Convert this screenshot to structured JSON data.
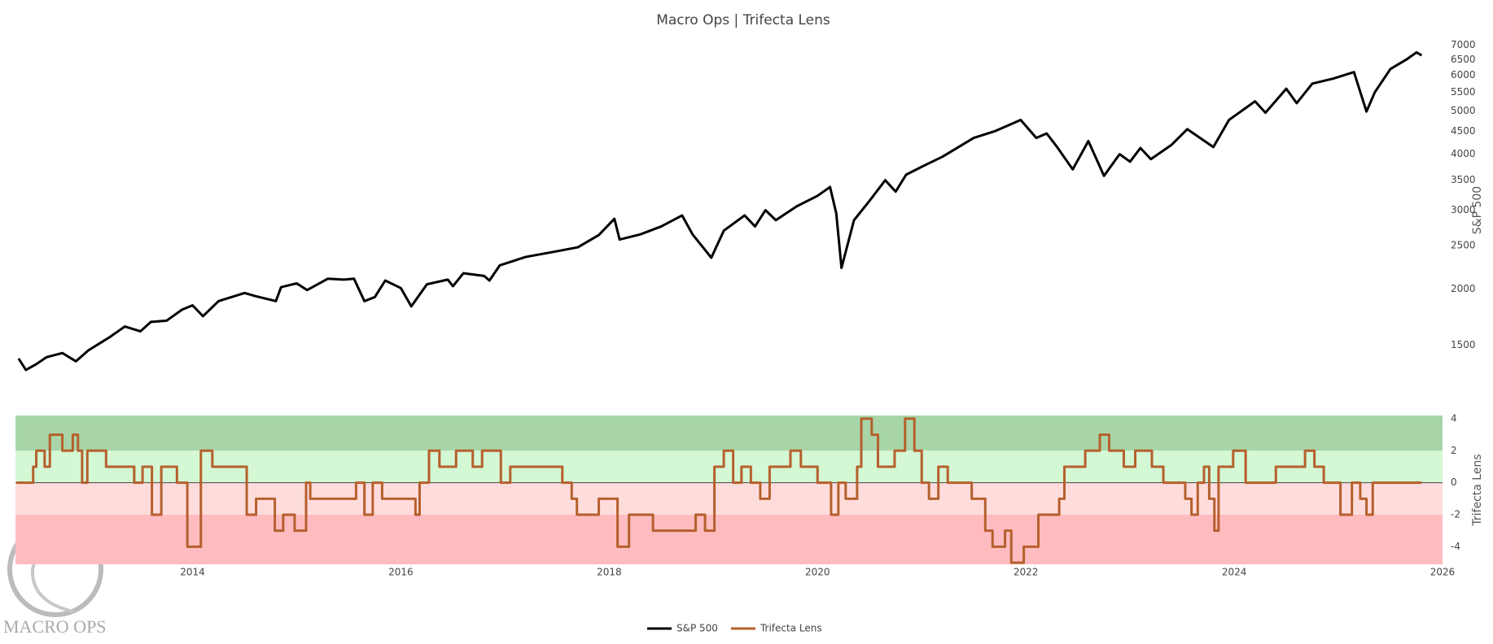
{
  "chart_data": [
    {
      "type": "line",
      "title": "Macro Ops | Trifecta Lens",
      "ylabel": "S&P 500",
      "log_scale": true,
      "x": [
        2012.33,
        2012.4,
        2012.5,
        2012.6,
        2012.75,
        2012.88,
        2013.0,
        2013.2,
        2013.35,
        2013.5,
        2013.6,
        2013.75,
        2013.9,
        2014.0,
        2014.1,
        2014.25,
        2014.5,
        2014.6,
        2014.8,
        2014.85,
        2015.0,
        2015.1,
        2015.3,
        2015.45,
        2015.55,
        2015.65,
        2015.75,
        2015.85,
        2016.0,
        2016.1,
        2016.25,
        2016.45,
        2016.5,
        2016.6,
        2016.8,
        2016.85,
        2016.95,
        2017.2,
        2017.5,
        2017.7,
        2017.9,
        2018.05,
        2018.1,
        2018.3,
        2018.5,
        2018.7,
        2018.8,
        2018.98,
        2019.1,
        2019.3,
        2019.4,
        2019.5,
        2019.6,
        2019.8,
        2020.0,
        2020.12,
        2020.18,
        2020.23,
        2020.35,
        2020.5,
        2020.65,
        2020.75,
        2020.85,
        2021.0,
        2021.2,
        2021.5,
        2021.7,
        2021.95,
        2022.1,
        2022.2,
        2022.3,
        2022.45,
        2022.6,
        2022.75,
        2022.9,
        2023.0,
        2023.1,
        2023.2,
        2023.4,
        2023.55,
        2023.8,
        2023.95,
        2024.2,
        2024.3,
        2024.5,
        2024.6,
        2024.75,
        2024.95,
        2025.15,
        2025.27,
        2025.35,
        2025.5,
        2025.65,
        2025.75,
        2025.8
      ],
      "series": [
        {
          "name": "S&P 500",
          "color": "#000000",
          "values": [
            1400,
            1320,
            1360,
            1410,
            1440,
            1380,
            1460,
            1560,
            1650,
            1610,
            1690,
            1700,
            1800,
            1840,
            1740,
            1880,
            1960,
            1930,
            1880,
            2020,
            2060,
            1990,
            2110,
            2100,
            2110,
            1880,
            1920,
            2090,
            2010,
            1830,
            2050,
            2100,
            2030,
            2170,
            2140,
            2090,
            2260,
            2360,
            2430,
            2480,
            2640,
            2870,
            2580,
            2650,
            2760,
            2920,
            2650,
            2350,
            2700,
            2920,
            2760,
            3000,
            2850,
            3060,
            3230,
            3380,
            2950,
            2230,
            2850,
            3150,
            3500,
            3300,
            3600,
            3750,
            3950,
            4350,
            4500,
            4770,
            4350,
            4450,
            4150,
            3700,
            4280,
            3580,
            4000,
            3850,
            4130,
            3900,
            4200,
            4550,
            4150,
            4770,
            5250,
            4950,
            5600,
            5200,
            5750,
            5900,
            6100,
            4980,
            5500,
            6200,
            6500,
            6750,
            6650
          ]
        }
      ],
      "xlim": [
        2012.3,
        2026
      ],
      "ylim": [
        1250,
        7200
      ],
      "yticks": [
        1500,
        2000,
        2500,
        3000,
        3500,
        4000,
        4500,
        5000,
        5500,
        6000,
        6500,
        7000
      ]
    },
    {
      "type": "line",
      "line_shape": "hv",
      "ylabel": "Trifecta Lens",
      "zeroline": true,
      "x": [
        2012.31,
        2012.47,
        2012.5,
        2012.58,
        2012.63,
        2012.75,
        2012.85,
        2012.9,
        2012.94,
        2012.99,
        2013.17,
        2013.44,
        2013.52,
        2013.61,
        2013.7,
        2013.85,
        2013.95,
        2014.08,
        2014.19,
        2014.52,
        2014.61,
        2014.79,
        2014.87,
        2014.98,
        2015.09,
        2015.13,
        2015.57,
        2015.65,
        2015.73,
        2015.82,
        2016.14,
        2016.18,
        2016.27,
        2016.37,
        2016.53,
        2016.69,
        2016.78,
        2016.96,
        2017.05,
        2017.55,
        2017.64,
        2017.69,
        2017.9,
        2018.08,
        2018.19,
        2018.42,
        2018.83,
        2018.92,
        2019.01,
        2019.1,
        2019.19,
        2019.27,
        2019.36,
        2019.45,
        2019.54,
        2019.74,
        2019.84,
        2020.0,
        2020.13,
        2020.2,
        2020.27,
        2020.38,
        2020.42,
        2020.52,
        2020.58,
        2020.74,
        2020.84,
        2020.93,
        2021.0,
        2021.07,
        2021.16,
        2021.25,
        2021.48,
        2021.61,
        2021.68,
        2021.8,
        2021.86,
        2021.98,
        2022.12,
        2022.32,
        2022.37,
        2022.57,
        2022.71,
        2022.8,
        2022.94,
        2023.05,
        2023.21,
        2023.32,
        2023.53,
        2023.59,
        2023.65,
        2023.71,
        2023.76,
        2023.81,
        2023.85,
        2023.99,
        2024.11,
        2024.4,
        2024.68,
        2024.77,
        2024.86,
        2025.02,
        2025.13,
        2025.21,
        2025.27,
        2025.33,
        2025.57,
        2025.8
      ],
      "series": [
        {
          "name": "Trifecta Lens",
          "color": "#b5602c",
          "values": [
            0,
            1,
            2,
            1,
            3,
            2,
            3,
            2,
            0,
            2,
            1,
            0,
            1,
            -2,
            1,
            0,
            -4,
            2,
            1,
            -2,
            -1,
            -3,
            -2,
            -3,
            0,
            -1,
            0,
            -2,
            0,
            -1,
            -2,
            0,
            2,
            1,
            2,
            1,
            2,
            0,
            1,
            0,
            -1,
            -2,
            -1,
            -4,
            -2,
            -3,
            -2,
            -3,
            1,
            2,
            0,
            1,
            0,
            -1,
            1,
            2,
            1,
            0,
            -2,
            0,
            -1,
            1,
            4,
            3,
            1,
            2,
            4,
            2,
            0,
            -1,
            1,
            0,
            -1,
            -3,
            -4,
            -3,
            -5,
            -4,
            -2,
            -1,
            1,
            2,
            3,
            2,
            1,
            2,
            1,
            0,
            -1,
            -2,
            0,
            1,
            -1,
            -3,
            1,
            2,
            0,
            1,
            2,
            1,
            0,
            -2,
            0,
            -1,
            -2,
            0,
            0,
            0
          ]
        }
      ],
      "bands": [
        {
          "from": 2,
          "to": 4.2,
          "color": "#a8d5a8"
        },
        {
          "from": 0,
          "to": 2,
          "color": "#d4f7d4"
        },
        {
          "from": -2,
          "to": 0,
          "color": "#ffdcdc"
        },
        {
          "from": -5.1,
          "to": -2,
          "color": "#ffbcc0"
        }
      ],
      "xlim": [
        2012.3,
        2026
      ],
      "xticks": [
        2014,
        2016,
        2018,
        2020,
        2022,
        2024,
        2026
      ],
      "ylim": [
        -5.1,
        4.2
      ],
      "yticks": [
        -4,
        -2,
        0,
        2,
        4
      ]
    }
  ],
  "legend": "bottom",
  "logo": "MACRO OPS"
}
